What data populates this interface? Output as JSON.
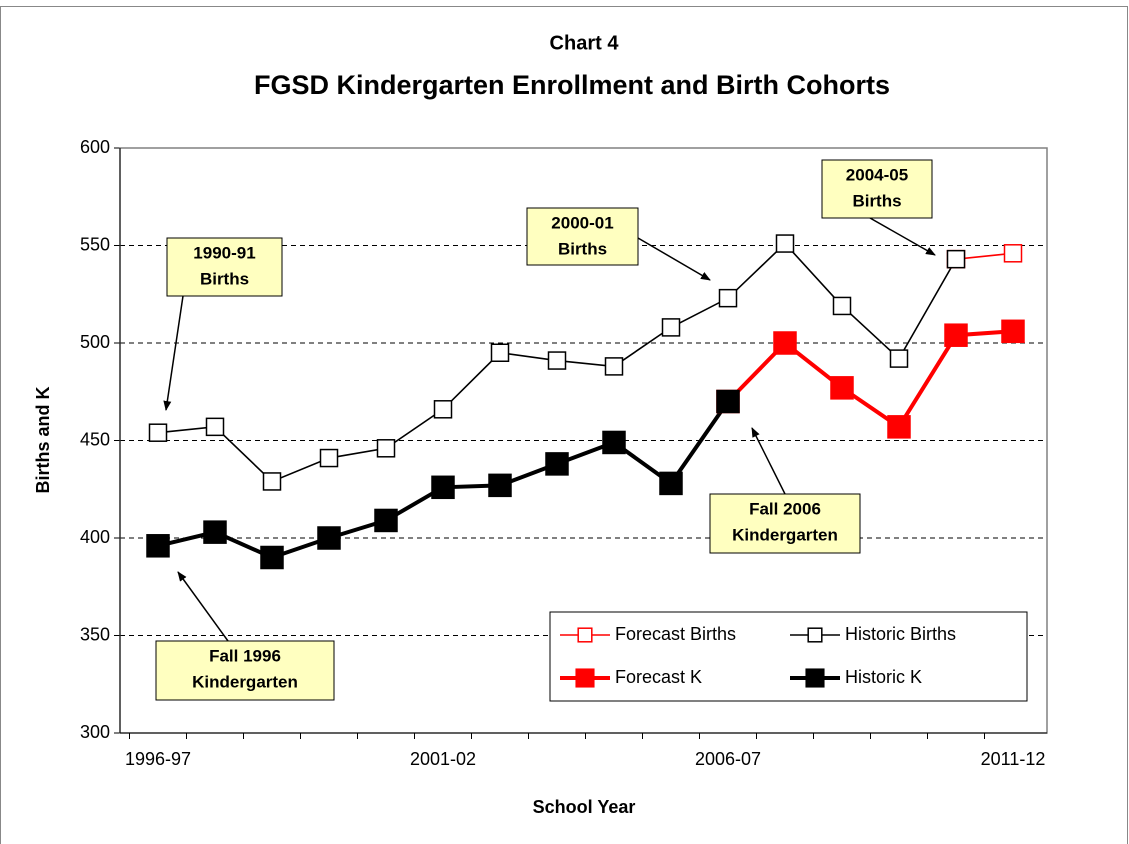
{
  "chart_data": {
    "type": "line",
    "chart_label": "Chart 4",
    "title": "FGSD Kindergarten Enrollment and Birth Cohorts",
    "xlabel": "School Year",
    "ylabel": "Births and K",
    "categories": [
      "1996-97",
      null,
      null,
      null,
      null,
      "2001-02",
      null,
      null,
      null,
      null,
      "2006-07",
      null,
      null,
      null,
      null,
      "2011-12"
    ],
    "ylim": [
      300,
      600
    ],
    "yticks": [
      300,
      350,
      400,
      450,
      500,
      550,
      600
    ],
    "grid": true,
    "legend": "lower right",
    "series": [
      {
        "name": "Forecast Births",
        "color": "#ff0000",
        "marker": "open",
        "values": [
          null,
          null,
          null,
          null,
          null,
          null,
          null,
          null,
          null,
          null,
          null,
          null,
          null,
          null,
          543,
          546
        ]
      },
      {
        "name": "Historic Births",
        "color": "#000000",
        "marker": "open",
        "values": [
          454,
          457,
          429,
          441,
          446,
          466,
          495,
          491,
          488,
          508,
          523,
          551,
          519,
          492,
          543,
          null
        ]
      },
      {
        "name": "Forecast K",
        "color": "#ff0000",
        "marker": "filled",
        "values": [
          null,
          null,
          null,
          null,
          null,
          null,
          null,
          null,
          null,
          null,
          470,
          500,
          477,
          457,
          504,
          506
        ]
      },
      {
        "name": "Historic K",
        "color": "#000000",
        "marker": "filled",
        "values": [
          396,
          403,
          390,
          400,
          409,
          426,
          427,
          438,
          449,
          428,
          470,
          null,
          null,
          null,
          null,
          null
        ]
      }
    ],
    "annotations": [
      {
        "lines": [
          "1990-91",
          "Births"
        ]
      },
      {
        "lines": [
          "2000-01",
          "Births"
        ]
      },
      {
        "lines": [
          "2004-05",
          "Births"
        ]
      },
      {
        "lines": [
          "Fall 2006",
          "Kindergarten"
        ]
      },
      {
        "lines": [
          "Fall 1996",
          "Kindergarten"
        ]
      }
    ]
  }
}
